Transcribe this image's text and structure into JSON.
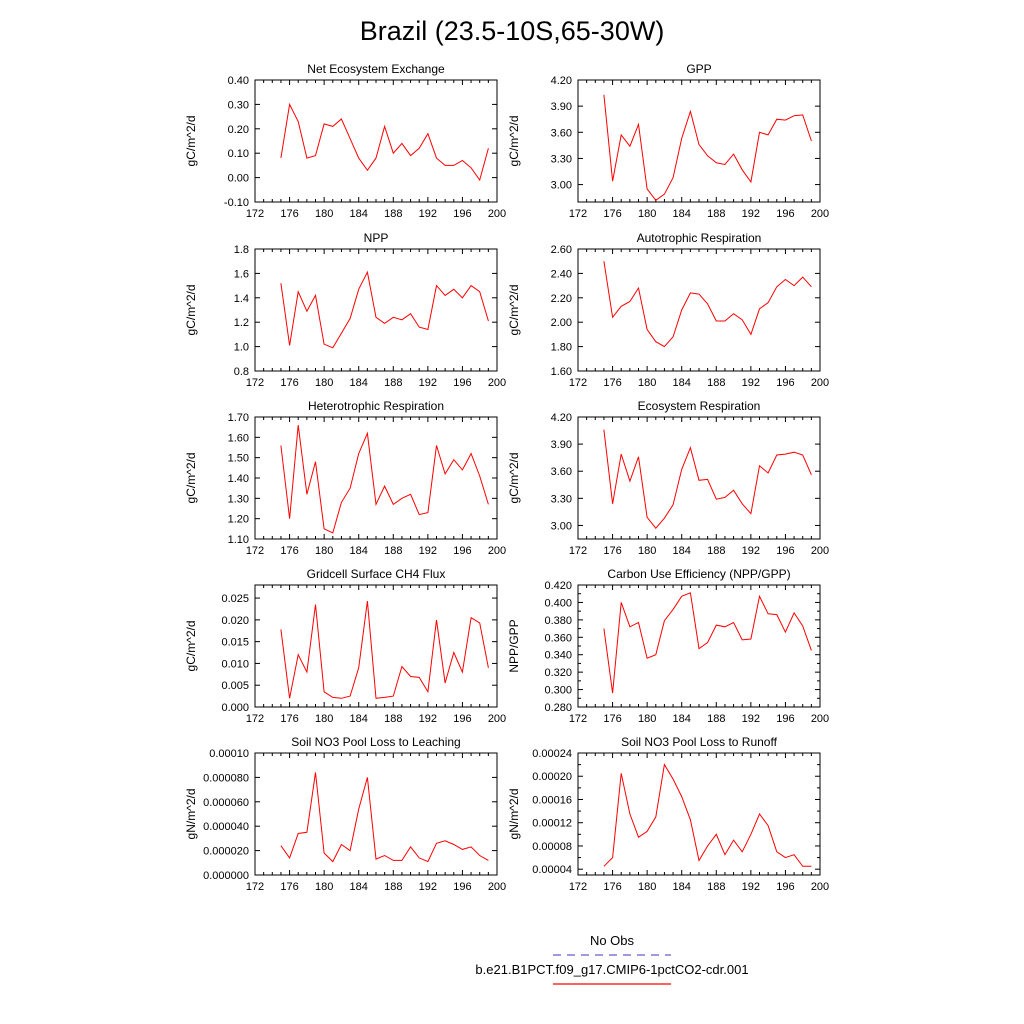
{
  "title": "Brazil (23.5-10S,65-30W)",
  "colors": {
    "model_line": "#ff0000",
    "obs_line": "#6a5acd",
    "axis": "#000000"
  },
  "legend": {
    "obs_label": "No Obs",
    "model_label": "b.e21.B1PCT.f09_g17.CMIP6-1pctCO2-cdr.001"
  },
  "chart_data": [
    {
      "type": "line",
      "title": "Net Ecosystem Exchange",
      "ylabel": "gC/m^2/d",
      "xlim": [
        172,
        200
      ],
      "ylim": [
        -0.1,
        0.4
      ],
      "xticks": [
        172,
        176,
        180,
        184,
        188,
        192,
        196,
        200
      ],
      "yticks": [
        -0.1,
        0.0,
        0.1,
        0.2,
        0.3,
        0.4
      ],
      "ytick_labels": [
        "-0.10",
        "0.00",
        "0.10",
        "0.20",
        "0.30",
        "0.40"
      ],
      "x": [
        175,
        176,
        177,
        178,
        179,
        180,
        181,
        182,
        183,
        184,
        185,
        186,
        187,
        188,
        189,
        190,
        191,
        192,
        193,
        194,
        195,
        196,
        197,
        198,
        199
      ],
      "values": [
        0.08,
        0.3,
        0.23,
        0.08,
        0.09,
        0.22,
        0.21,
        0.24,
        0.16,
        0.08,
        0.03,
        0.08,
        0.21,
        0.1,
        0.14,
        0.09,
        0.12,
        0.18,
        0.08,
        0.05,
        0.05,
        0.07,
        0.04,
        -0.01,
        0.12
      ]
    },
    {
      "type": "line",
      "title": "GPP",
      "ylabel": "gC/m^2/d",
      "xlim": [
        172,
        200
      ],
      "ylim": [
        2.8,
        4.2
      ],
      "xticks": [
        172,
        176,
        180,
        184,
        188,
        192,
        196,
        200
      ],
      "yticks": [
        3.0,
        3.3,
        3.6,
        3.9,
        4.2
      ],
      "ytick_labels": [
        "3.00",
        "3.30",
        "3.60",
        "3.90",
        "4.20"
      ],
      "x": [
        175,
        176,
        177,
        178,
        179,
        180,
        181,
        182,
        183,
        184,
        185,
        186,
        187,
        188,
        189,
        190,
        191,
        192,
        193,
        194,
        195,
        196,
        197,
        198,
        199
      ],
      "values": [
        4.03,
        3.04,
        3.57,
        3.44,
        3.69,
        2.95,
        2.82,
        2.89,
        3.08,
        3.53,
        3.84,
        3.46,
        3.33,
        3.25,
        3.23,
        3.35,
        3.17,
        3.03,
        3.6,
        3.57,
        3.75,
        3.74,
        3.79,
        3.8,
        3.5
      ]
    },
    {
      "type": "line",
      "title": "NPP",
      "ylabel": "gC/m^2/d",
      "xlim": [
        172,
        200
      ],
      "ylim": [
        0.8,
        1.8
      ],
      "xticks": [
        172,
        176,
        180,
        184,
        188,
        192,
        196,
        200
      ],
      "yticks": [
        0.8,
        1.0,
        1.2,
        1.4,
        1.6,
        1.8
      ],
      "ytick_labels": [
        "0.8",
        "1.0",
        "1.2",
        "1.4",
        "1.6",
        "1.8"
      ],
      "x": [
        175,
        176,
        177,
        178,
        179,
        180,
        181,
        182,
        183,
        184,
        185,
        186,
        187,
        188,
        189,
        190,
        191,
        192,
        193,
        194,
        195,
        196,
        197,
        198,
        199
      ],
      "values": [
        1.52,
        1.01,
        1.45,
        1.29,
        1.42,
        1.02,
        0.99,
        1.11,
        1.23,
        1.47,
        1.61,
        1.24,
        1.19,
        1.24,
        1.22,
        1.27,
        1.16,
        1.14,
        1.5,
        1.42,
        1.47,
        1.4,
        1.5,
        1.45,
        1.21
      ]
    },
    {
      "type": "line",
      "title": "Autotrophic Respiration",
      "ylabel": "gC/m^2/d",
      "xlim": [
        172,
        200
      ],
      "ylim": [
        1.6,
        2.6
      ],
      "xticks": [
        172,
        176,
        180,
        184,
        188,
        192,
        196,
        200
      ],
      "yticks": [
        1.6,
        1.8,
        2.0,
        2.2,
        2.4,
        2.6
      ],
      "ytick_labels": [
        "1.60",
        "1.80",
        "2.00",
        "2.20",
        "2.40",
        "2.60"
      ],
      "x": [
        175,
        176,
        177,
        178,
        179,
        180,
        181,
        182,
        183,
        184,
        185,
        186,
        187,
        188,
        189,
        190,
        191,
        192,
        193,
        194,
        195,
        196,
        197,
        198,
        199
      ],
      "values": [
        2.5,
        2.04,
        2.13,
        2.17,
        2.28,
        1.94,
        1.84,
        1.8,
        1.88,
        2.1,
        2.24,
        2.23,
        2.15,
        2.01,
        2.01,
        2.07,
        2.02,
        1.9,
        2.11,
        2.16,
        2.29,
        2.35,
        2.3,
        2.37,
        2.29
      ]
    },
    {
      "type": "line",
      "title": "Heterotrophic Respiration",
      "ylabel": "gC/m^2/d",
      "xlim": [
        172,
        200
      ],
      "ylim": [
        1.1,
        1.7
      ],
      "xticks": [
        172,
        176,
        180,
        184,
        188,
        192,
        196,
        200
      ],
      "yticks": [
        1.1,
        1.2,
        1.3,
        1.4,
        1.5,
        1.6,
        1.7
      ],
      "ytick_labels": [
        "1.10",
        "1.20",
        "1.30",
        "1.40",
        "1.50",
        "1.60",
        "1.70"
      ],
      "x": [
        175,
        176,
        177,
        178,
        179,
        180,
        181,
        182,
        183,
        184,
        185,
        186,
        187,
        188,
        189,
        190,
        191,
        192,
        193,
        194,
        195,
        196,
        197,
        198,
        199
      ],
      "values": [
        1.56,
        1.2,
        1.66,
        1.32,
        1.48,
        1.15,
        1.13,
        1.28,
        1.35,
        1.52,
        1.62,
        1.27,
        1.36,
        1.27,
        1.3,
        1.32,
        1.22,
        1.23,
        1.56,
        1.42,
        1.49,
        1.44,
        1.52,
        1.41,
        1.27
      ]
    },
    {
      "type": "line",
      "title": "Ecosystem Respiration",
      "ylabel": "gC/m^2/d",
      "xlim": [
        172,
        200
      ],
      "ylim": [
        2.85,
        4.2
      ],
      "xticks": [
        172,
        176,
        180,
        184,
        188,
        192,
        196,
        200
      ],
      "yticks": [
        3.0,
        3.3,
        3.6,
        3.9,
        4.2
      ],
      "ytick_labels": [
        "3.00",
        "3.30",
        "3.60",
        "3.90",
        "4.20"
      ],
      "x": [
        175,
        176,
        177,
        178,
        179,
        180,
        181,
        182,
        183,
        184,
        185,
        186,
        187,
        188,
        189,
        190,
        191,
        192,
        193,
        194,
        195,
        196,
        197,
        198,
        199
      ],
      "values": [
        4.06,
        3.24,
        3.79,
        3.49,
        3.76,
        3.09,
        2.97,
        3.08,
        3.23,
        3.62,
        3.86,
        3.5,
        3.51,
        3.29,
        3.31,
        3.39,
        3.24,
        3.13,
        3.66,
        3.58,
        3.78,
        3.79,
        3.81,
        3.78,
        3.56
      ]
    },
    {
      "type": "line",
      "title": "Gridcell Surface CH4 Flux",
      "ylabel": "gC/m^2/d",
      "xlim": [
        172,
        200
      ],
      "ylim": [
        0.0,
        0.028
      ],
      "xticks": [
        172,
        176,
        180,
        184,
        188,
        192,
        196,
        200
      ],
      "yticks": [
        0.0,
        0.005,
        0.01,
        0.015,
        0.02,
        0.025
      ],
      "ytick_labels": [
        "0.000",
        "0.005",
        "0.010",
        "0.015",
        "0.020",
        "0.025"
      ],
      "x": [
        175,
        176,
        177,
        178,
        179,
        180,
        181,
        182,
        183,
        184,
        185,
        186,
        187,
        188,
        189,
        190,
        191,
        192,
        193,
        194,
        195,
        196,
        197,
        198,
        199
      ],
      "values": [
        0.0178,
        0.002,
        0.012,
        0.008,
        0.0235,
        0.0035,
        0.0022,
        0.002,
        0.0025,
        0.009,
        0.0243,
        0.002,
        0.0022,
        0.0025,
        0.0093,
        0.007,
        0.0068,
        0.0035,
        0.02,
        0.0055,
        0.0125,
        0.008,
        0.0205,
        0.0193,
        0.009
      ]
    },
    {
      "type": "line",
      "title": "Carbon Use Efficiency (NPP/GPP)",
      "ylabel": "NPP/GPP",
      "xlim": [
        172,
        200
      ],
      "ylim": [
        0.28,
        0.42
      ],
      "xticks": [
        172,
        176,
        180,
        184,
        188,
        192,
        196,
        200
      ],
      "yticks": [
        0.28,
        0.29,
        0.3,
        0.31,
        0.32,
        0.33,
        0.34,
        0.35,
        0.36,
        0.37,
        0.38,
        0.39,
        0.4,
        0.41,
        0.42
      ],
      "ytick_labels": [
        "0.280",
        "",
        "0.300",
        "",
        "0.320",
        "",
        "0.340",
        "",
        "0.360",
        "",
        "0.380",
        "",
        "0.400",
        "",
        "0.420"
      ],
      "x": [
        175,
        176,
        177,
        178,
        179,
        180,
        181,
        182,
        183,
        184,
        185,
        186,
        187,
        188,
        189,
        190,
        191,
        192,
        193,
        194,
        195,
        196,
        197,
        198,
        199
      ],
      "values": [
        0.37,
        0.296,
        0.4,
        0.372,
        0.377,
        0.336,
        0.34,
        0.379,
        0.392,
        0.407,
        0.411,
        0.347,
        0.354,
        0.374,
        0.372,
        0.377,
        0.357,
        0.358,
        0.407,
        0.387,
        0.386,
        0.366,
        0.388,
        0.373,
        0.345
      ]
    },
    {
      "type": "line",
      "title": "Soil NO3 Pool Loss to Leaching",
      "ylabel": "gN/m^2/d",
      "xlim": [
        172,
        200
      ],
      "ylim": [
        0.0,
        0.0001
      ],
      "xticks": [
        172,
        176,
        180,
        184,
        188,
        192,
        196,
        200
      ],
      "yticks": [
        0.0,
        2e-05,
        4e-05,
        6e-05,
        8e-05,
        0.0001
      ],
      "ytick_labels": [
        "0.000000",
        "0.000020",
        "0.000040",
        "0.000060",
        "0.000080",
        "0.00010"
      ],
      "x": [
        175,
        176,
        177,
        178,
        179,
        180,
        181,
        182,
        183,
        184,
        185,
        186,
        187,
        188,
        189,
        190,
        191,
        192,
        193,
        194,
        195,
        196,
        197,
        198,
        199
      ],
      "values": [
        2.4e-05,
        1.4e-05,
        3.4e-05,
        3.5e-05,
        8.4e-05,
        1.8e-05,
        1.1e-05,
        2.5e-05,
        2e-05,
        5.4e-05,
        8e-05,
        1.3e-05,
        1.6e-05,
        1.2e-05,
        1.2e-05,
        2.3e-05,
        1.4e-05,
        1.1e-05,
        2.6e-05,
        2.8e-05,
        2.5e-05,
        2.1e-05,
        2.3e-05,
        1.6e-05,
        1.2e-05
      ]
    },
    {
      "type": "line",
      "title": "Soil NO3 Pool Loss to Runoff",
      "ylabel": "gN/m^2/d",
      "xlim": [
        172,
        200
      ],
      "ylim": [
        3e-05,
        0.00024
      ],
      "xticks": [
        172,
        176,
        180,
        184,
        188,
        192,
        196,
        200
      ],
      "yticks": [
        4e-05,
        6e-05,
        8e-05,
        0.0001,
        0.00012,
        0.00014,
        0.00016,
        0.00018,
        0.0002,
        0.00022,
        0.00024
      ],
      "ytick_labels": [
        "0.00004",
        "",
        "0.00008",
        "",
        "0.00012",
        "",
        "0.00016",
        "",
        "0.00020",
        "",
        "0.00024"
      ],
      "x": [
        175,
        176,
        177,
        178,
        179,
        180,
        181,
        182,
        183,
        184,
        185,
        186,
        187,
        188,
        189,
        190,
        191,
        192,
        193,
        194,
        195,
        196,
        197,
        198,
        199
      ],
      "values": [
        4.5e-05,
        6e-05,
        0.000205,
        0.000135,
        9.5e-05,
        0.000105,
        0.00013,
        0.00022,
        0.000195,
        0.000165,
        0.000125,
        5.5e-05,
        8e-05,
        0.0001,
        6.5e-05,
        9e-05,
        7e-05,
        0.0001,
        0.000135,
        0.000115,
        7e-05,
        6e-05,
        6.5e-05,
        4.5e-05,
        4.5e-05
      ]
    }
  ]
}
